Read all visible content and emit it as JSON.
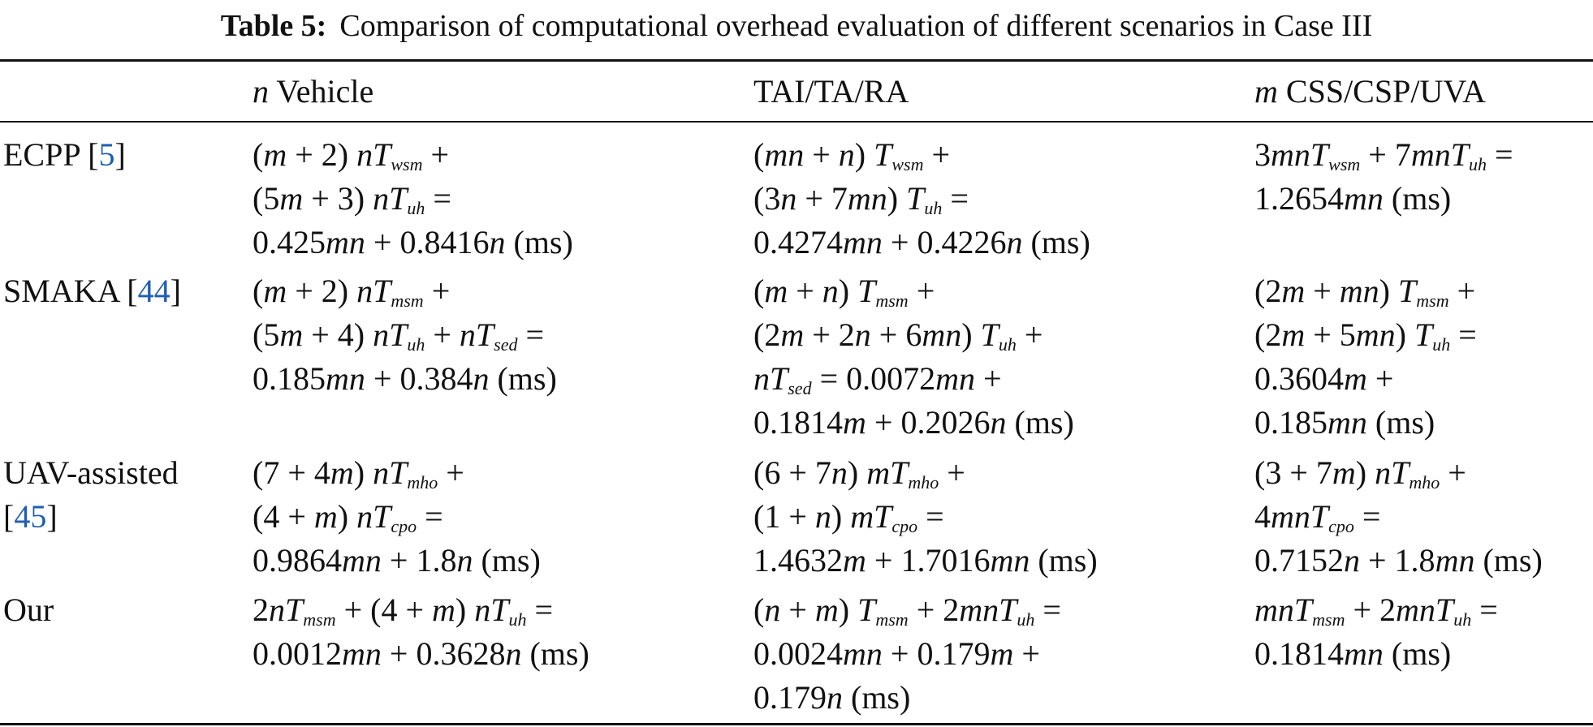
{
  "caption": {
    "label": "Table 5:",
    "text": "Comparison of computational overhead evaluation of different scenarios in Case III"
  },
  "columns": [
    {
      "var": "",
      "text": ""
    },
    {
      "var": "n",
      "text": " Vehicle"
    },
    {
      "var": "",
      "text": "TAI/TA/RA"
    },
    {
      "var": "m",
      "text": " CSS/CSP/UVA"
    }
  ],
  "rows": [
    {
      "scheme": "ECPP",
      "ref": "5",
      "vehicle": [
        "(m + 2) nT_wsm +",
        "(5m + 3) nT_uh =",
        "0.425mn + 0.8416n (ms)"
      ],
      "tai": [
        "(mn + n) T_wsm +",
        "(3n + 7mn) T_uh =",
        "0.4274mn + 0.4226n (ms)"
      ],
      "css": [
        "3mnT_wsm + 7mnT_uh =",
        "1.2654mn (ms)"
      ]
    },
    {
      "scheme": "SMAKA",
      "ref": "44",
      "vehicle": [
        "(m + 2) nT_msm +",
        "(5m + 4) nT_uh + nT_sed =",
        "0.185mn + 0.384n (ms)"
      ],
      "tai": [
        "(m + n) T_msm +",
        "(2m + 2n + 6mn) T_uh +",
        "nT_sed = 0.0072mn +",
        "0.1814m + 0.2026n (ms)"
      ],
      "css": [
        "(2m + mn) T_msm +",
        "(2m + 5mn) T_uh =",
        "0.3604m +",
        "0.185mn (ms)"
      ]
    },
    {
      "scheme": "UAV-assisted",
      "ref": "45",
      "vehicle": [
        "(7 + 4m) nT_mho +",
        "(4 + m) nT_cpo =",
        "0.9864mn + 1.8n (ms)"
      ],
      "tai": [
        "(6 + 7n) mT_mho +",
        "(1 + n) mT_cpo =",
        "1.4632m + 1.7016mn (ms)"
      ],
      "css": [
        "(3 + 7m) nT_mho +",
        "4mnT_cpo =",
        "0.7152n + 1.8mn (ms)"
      ]
    },
    {
      "scheme": "Our",
      "ref": "",
      "vehicle": [
        "2nT_msm + (4 + m) nT_uh =",
        "0.0012mn + 0.3628n (ms)"
      ],
      "tai": [
        "(n + m) T_msm + 2mnT_uh =",
        "0.0024mn + 0.179m +",
        "0.179n (ms)"
      ],
      "css": [
        "mnT_msm + 2mnT_uh =",
        "0.1814mn (ms)"
      ]
    }
  ]
}
